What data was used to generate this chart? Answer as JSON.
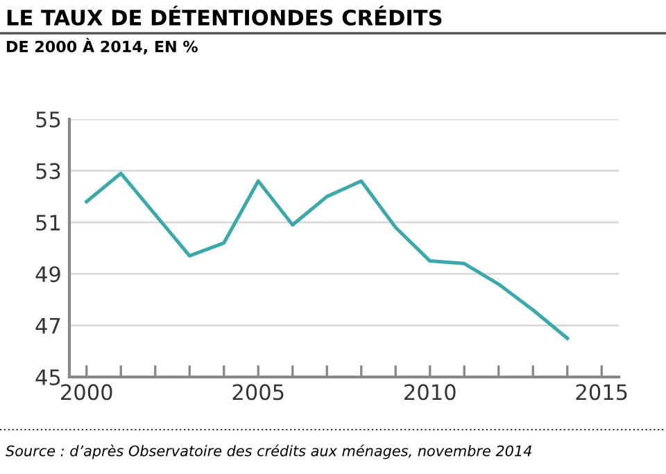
{
  "chart_data": {
    "type": "line",
    "title": "LE TAUX DE DÉTENTIONDES CRÉDITS",
    "subtitle": "DE 2000 À 2014, EN %",
    "x": [
      2000,
      2001,
      2002,
      2003,
      2004,
      2005,
      2006,
      2007,
      2008,
      2009,
      2010,
      2011,
      2012,
      2013,
      2014
    ],
    "series": [
      {
        "color": "#3aa9a9",
        "values": [
          51.8,
          52.9,
          51.3,
          49.7,
          50.2,
          52.6,
          50.9,
          52.0,
          52.6,
          50.8,
          49.5,
          49.4,
          48.6,
          47.6,
          46.5
        ]
      }
    ],
    "xlim": [
      1999.5,
      2015.5
    ],
    "ylim": [
      45,
      55
    ],
    "xticks": [
      2000,
      {
        "value": 2001,
        "label": null
      },
      {
        "value": 2002,
        "label": null
      },
      {
        "value": 2003,
        "label": null
      },
      {
        "value": 2004,
        "label": null
      },
      2005,
      {
        "value": 2006,
        "label": null
      },
      {
        "value": 2007,
        "label": null
      },
      {
        "value": 2008,
        "label": null
      },
      {
        "value": 2009,
        "label": null
      },
      2010,
      {
        "value": 2011,
        "label": null
      },
      {
        "value": 2012,
        "label": null
      },
      {
        "value": 2013,
        "label": null
      },
      {
        "value": 2014,
        "label": null
      },
      2015
    ],
    "yticks": [
      45,
      47,
      49,
      51,
      53,
      55
    ],
    "grid": "y",
    "marker": "none",
    "line_style": "solid",
    "annotations": [
      "Source : d’après Observatoire des crédits aux ménages, novembre 2014"
    ]
  }
}
